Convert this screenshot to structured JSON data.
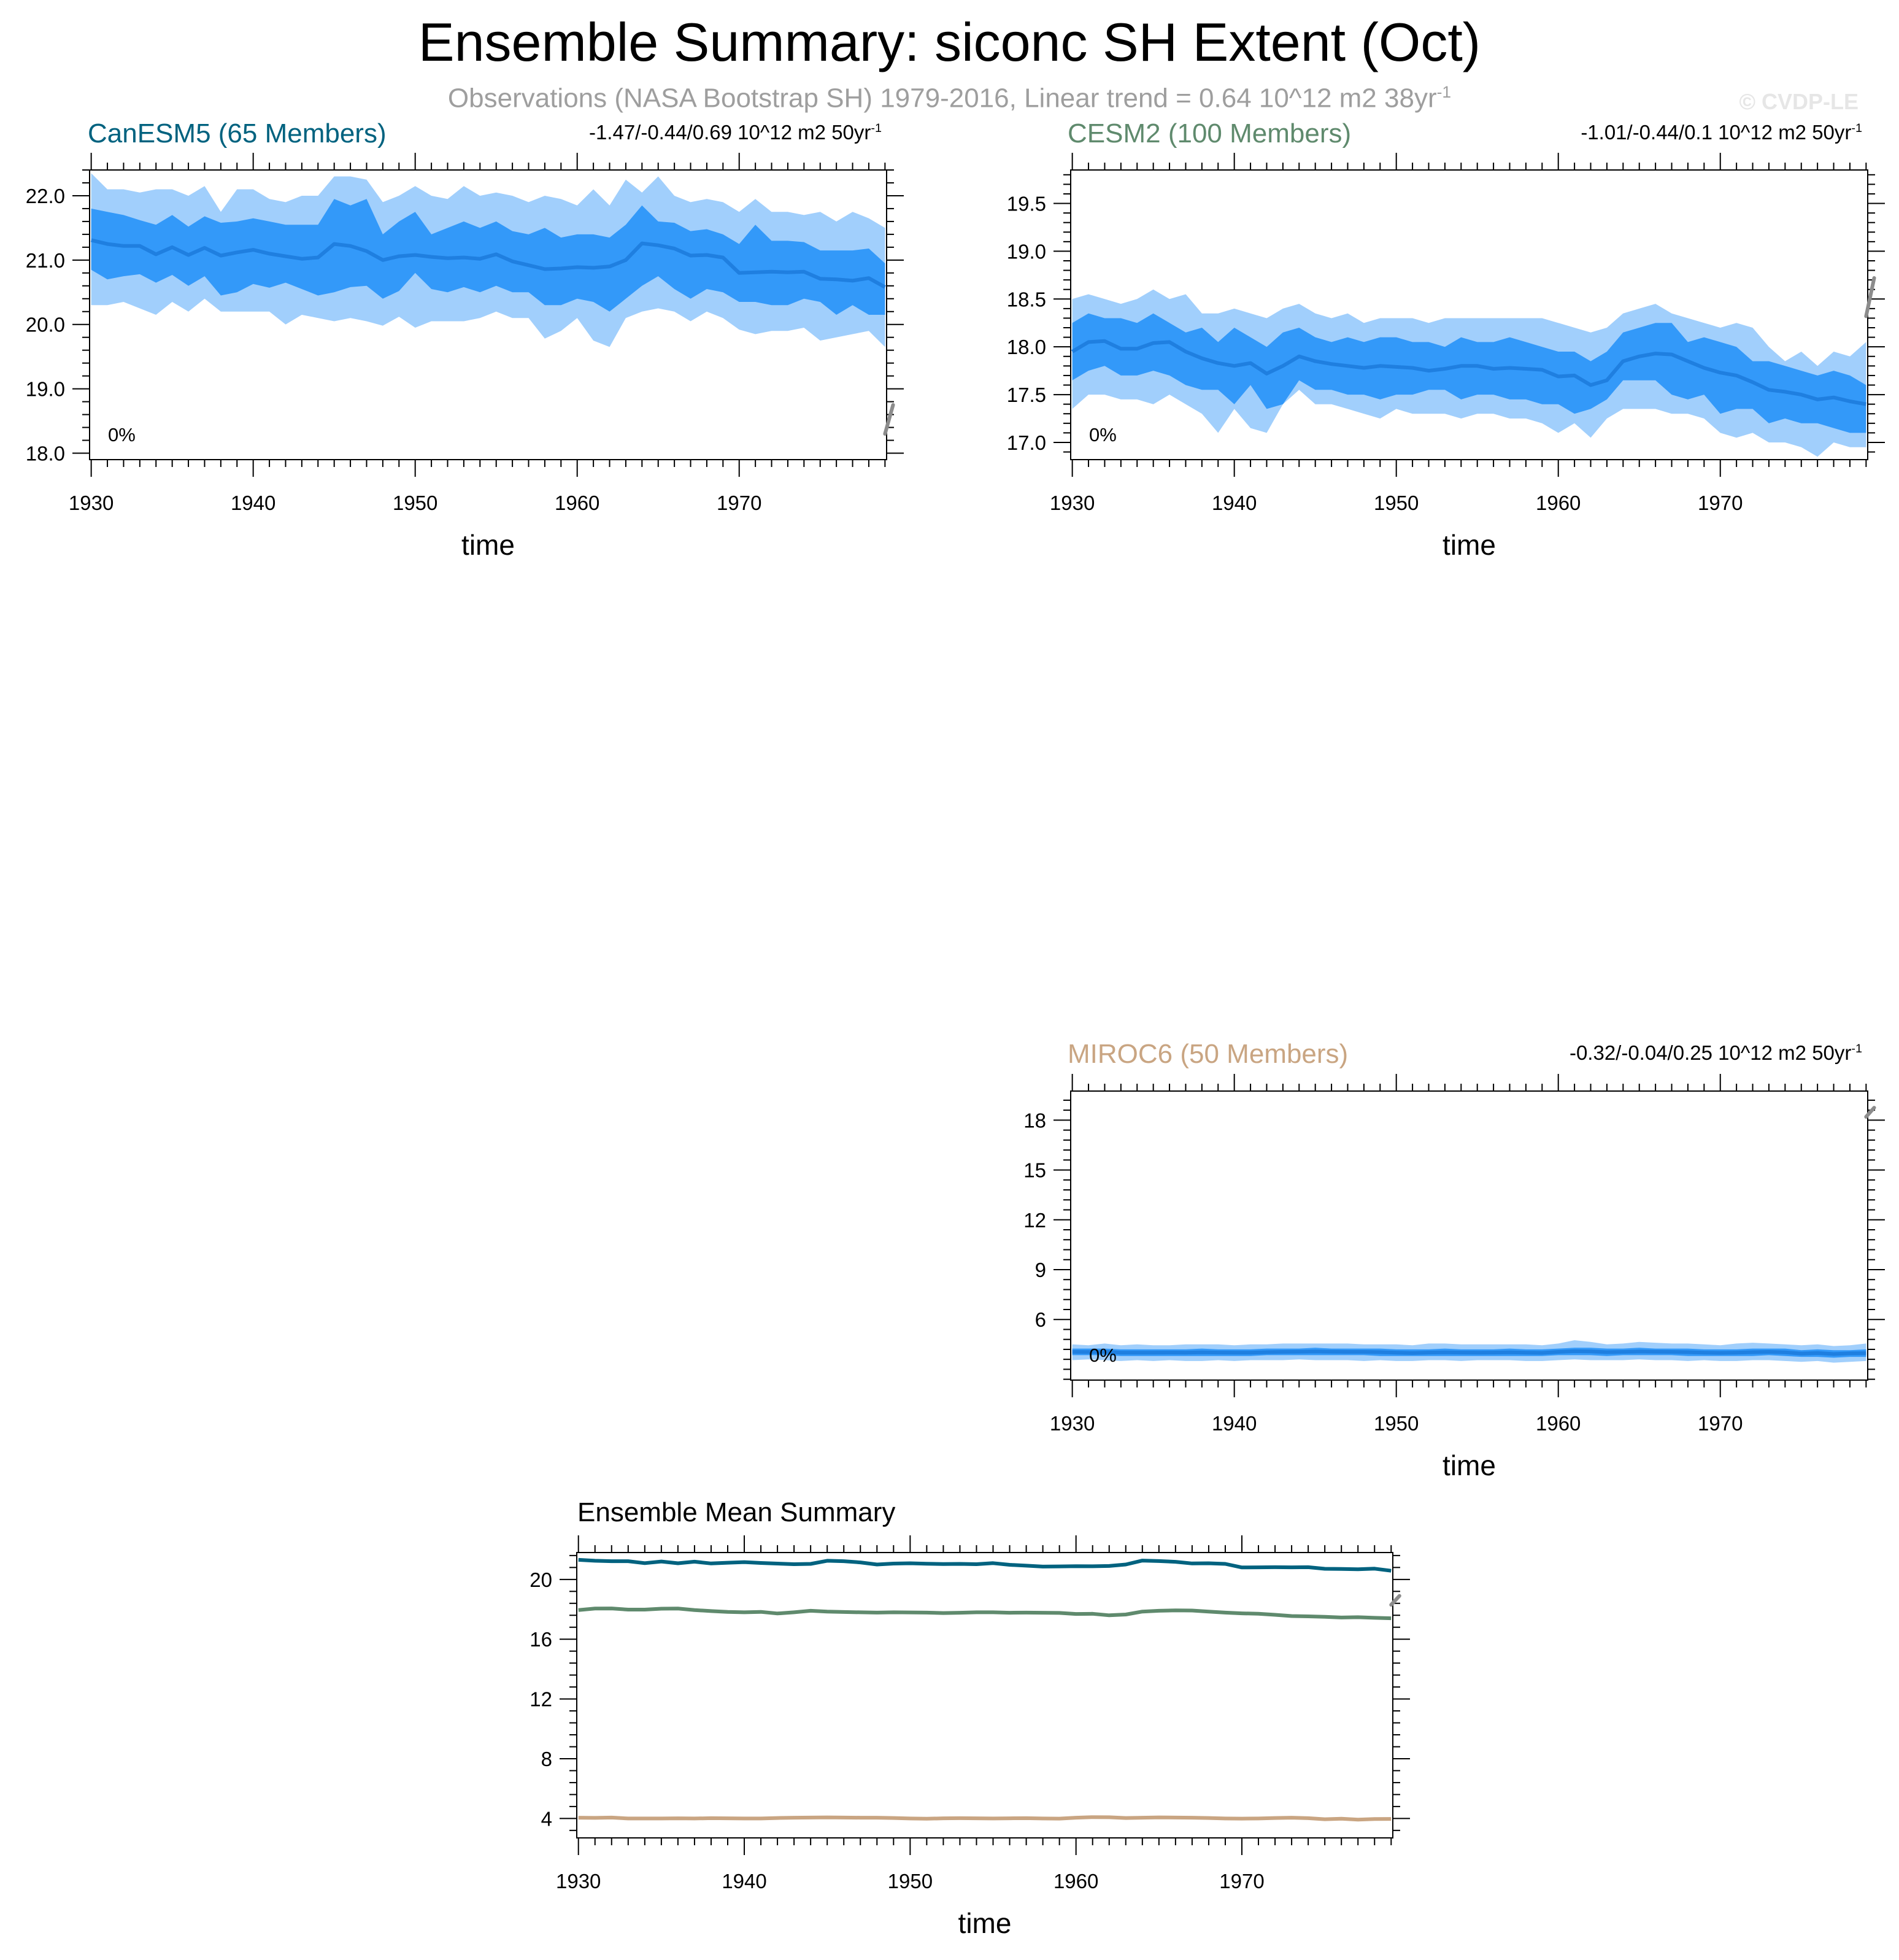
{
  "header": {
    "title": "Ensemble Summary: siconc SH Extent (Oct)",
    "subtitle_text": "Observations (NASA Bootstrap SH) 1979-2016, Linear trend = 0.64 10^12 m2 38yr",
    "subtitle_sup": "-1",
    "copyright": "© CVDP-LE"
  },
  "chart_data": [
    {
      "type": "area",
      "title": "CanESM5 (65 Members)",
      "title_color": "#00627f",
      "trend_text": "-1.47/-0.44/0.69 10^12 m2 50yr",
      "trend_sup": "-1",
      "percent_label": "0%",
      "xlabel": "time",
      "x_ticks": [
        1930,
        1940,
        1950,
        1960,
        1970
      ],
      "y_ticks": [
        "18.0",
        "19.0",
        "20.0",
        "21.0",
        "22.0"
      ],
      "xlim": [
        1929.9,
        1979.1
      ],
      "ylim": [
        17.9,
        22.4
      ],
      "colors": {
        "outer_band": "#a1cffc",
        "inner_band": "#3399f9",
        "mean": "#1f7fe0",
        "obs": "#8c8c8c"
      },
      "x": [
        1930,
        1931,
        1932,
        1933,
        1934,
        1935,
        1936,
        1937,
        1938,
        1939,
        1940,
        1941,
        1942,
        1943,
        1944,
        1945,
        1946,
        1947,
        1948,
        1949,
        1950,
        1951,
        1952,
        1953,
        1954,
        1955,
        1956,
        1957,
        1958,
        1959,
        1960,
        1961,
        1962,
        1963,
        1964,
        1965,
        1966,
        1967,
        1968,
        1969,
        1970,
        1971,
        1972,
        1973,
        1974,
        1975,
        1976,
        1977,
        1978,
        1979
      ],
      "mean": [
        21.31,
        21.25,
        21.22,
        21.22,
        21.09,
        21.2,
        21.08,
        21.19,
        21.07,
        21.12,
        21.16,
        21.1,
        21.06,
        21.02,
        21.04,
        21.25,
        21.22,
        21.14,
        21.0,
        21.06,
        21.08,
        21.05,
        21.03,
        21.04,
        21.02,
        21.09,
        20.98,
        20.92,
        20.86,
        20.87,
        20.89,
        20.88,
        20.9,
        21.0,
        21.26,
        21.23,
        21.18,
        21.07,
        21.08,
        21.04,
        20.8,
        20.81,
        20.82,
        20.81,
        20.82,
        20.71,
        20.7,
        20.68,
        20.72,
        20.58
      ],
      "p25": [
        20.85,
        20.7,
        20.75,
        20.78,
        20.65,
        20.77,
        20.6,
        20.75,
        20.45,
        20.5,
        20.63,
        20.57,
        20.65,
        20.55,
        20.45,
        20.5,
        20.58,
        20.6,
        20.4,
        20.52,
        20.8,
        20.55,
        20.5,
        20.58,
        20.5,
        20.6,
        20.5,
        20.5,
        20.3,
        20.3,
        20.4,
        20.35,
        20.2,
        20.4,
        20.6,
        20.75,
        20.55,
        20.4,
        20.55,
        20.5,
        20.35,
        20.35,
        20.3,
        20.3,
        20.4,
        20.35,
        20.15,
        20.3,
        20.15,
        20.15
      ],
      "p75": [
        21.8,
        21.75,
        21.7,
        21.62,
        21.55,
        21.7,
        21.52,
        21.68,
        21.58,
        21.6,
        21.65,
        21.6,
        21.55,
        21.55,
        21.55,
        21.95,
        21.85,
        21.95,
        21.4,
        21.6,
        21.75,
        21.4,
        21.5,
        21.6,
        21.5,
        21.6,
        21.45,
        21.4,
        21.5,
        21.35,
        21.4,
        21.4,
        21.35,
        21.55,
        21.85,
        21.6,
        21.58,
        21.45,
        21.48,
        21.4,
        21.25,
        21.55,
        21.3,
        21.3,
        21.28,
        21.15,
        21.15,
        21.15,
        21.18,
        20.95
      ],
      "p2": [
        20.3,
        20.3,
        20.35,
        20.25,
        20.15,
        20.35,
        20.2,
        20.4,
        20.2,
        20.2,
        20.2,
        20.2,
        20.0,
        20.15,
        20.1,
        20.05,
        20.1,
        20.05,
        19.98,
        20.12,
        19.95,
        20.05,
        20.05,
        20.05,
        20.1,
        20.2,
        20.1,
        20.1,
        19.78,
        19.9,
        20.1,
        19.75,
        19.65,
        20.1,
        20.2,
        20.25,
        20.2,
        20.05,
        20.2,
        20.1,
        19.92,
        19.85,
        19.9,
        19.9,
        19.95,
        19.75,
        19.8,
        19.85,
        19.9,
        19.65
      ],
      "p98": [
        22.35,
        22.1,
        22.1,
        22.05,
        22.1,
        22.1,
        22.0,
        22.15,
        21.75,
        22.1,
        22.1,
        21.95,
        21.9,
        22.0,
        22.0,
        22.3,
        22.3,
        22.25,
        21.9,
        22.0,
        22.15,
        22.0,
        21.95,
        22.15,
        22.0,
        22.05,
        22.0,
        21.9,
        22.0,
        21.95,
        21.85,
        22.1,
        21.85,
        22.25,
        22.05,
        22.3,
        22.0,
        21.9,
        21.95,
        21.9,
        21.75,
        21.95,
        21.75,
        21.75,
        21.7,
        21.75,
        21.6,
        21.75,
        21.65,
        21.5
      ],
      "obs_trend": {
        "x": [
          1979.0,
          1979.5
        ],
        "y": [
          18.3,
          18.75
        ]
      }
    },
    {
      "type": "area",
      "title": "CESM2 (100 Members)",
      "title_color": "#5f8a6d",
      "trend_text": "-1.01/-0.44/0.1 10^12 m2 50yr",
      "trend_sup": "-1",
      "percent_label": "0%",
      "xlabel": "time",
      "x_ticks": [
        1930,
        1940,
        1950,
        1960,
        1970
      ],
      "y_ticks": [
        "17.0",
        "17.5",
        "18.0",
        "18.5",
        "19.0",
        "19.5"
      ],
      "xlim": [
        1929.9,
        1979.1
      ],
      "ylim": [
        16.82,
        19.85
      ],
      "colors": {
        "outer_band": "#a1cffc",
        "inner_band": "#3399f9",
        "mean": "#1f7fe0",
        "obs": "#8c8c8c"
      },
      "x": [
        1930,
        1931,
        1932,
        1933,
        1934,
        1935,
        1936,
        1937,
        1938,
        1939,
        1940,
        1941,
        1942,
        1943,
        1944,
        1945,
        1946,
        1947,
        1948,
        1949,
        1950,
        1951,
        1952,
        1953,
        1954,
        1955,
        1956,
        1957,
        1958,
        1959,
        1960,
        1961,
        1962,
        1963,
        1964,
        1965,
        1966,
        1967,
        1968,
        1969,
        1970,
        1971,
        1972,
        1973,
        1974,
        1975,
        1976,
        1977,
        1978,
        1979
      ],
      "mean": [
        17.95,
        18.05,
        18.06,
        17.98,
        17.98,
        18.04,
        18.05,
        17.95,
        17.88,
        17.83,
        17.8,
        17.83,
        17.72,
        17.8,
        17.9,
        17.85,
        17.82,
        17.8,
        17.78,
        17.8,
        17.79,
        17.78,
        17.75,
        17.77,
        17.8,
        17.8,
        17.77,
        17.78,
        17.77,
        17.76,
        17.69,
        17.7,
        17.6,
        17.65,
        17.85,
        17.9,
        17.93,
        17.92,
        17.85,
        17.78,
        17.73,
        17.7,
        17.63,
        17.55,
        17.53,
        17.5,
        17.45,
        17.47,
        17.43,
        17.4
      ],
      "p25": [
        17.65,
        17.75,
        17.8,
        17.7,
        17.7,
        17.75,
        17.7,
        17.6,
        17.55,
        17.55,
        17.4,
        17.6,
        17.35,
        17.4,
        17.65,
        17.55,
        17.55,
        17.5,
        17.5,
        17.45,
        17.5,
        17.5,
        17.55,
        17.55,
        17.45,
        17.5,
        17.5,
        17.45,
        17.45,
        17.4,
        17.4,
        17.3,
        17.35,
        17.45,
        17.65,
        17.65,
        17.65,
        17.5,
        17.45,
        17.5,
        17.3,
        17.35,
        17.35,
        17.2,
        17.25,
        17.2,
        17.2,
        17.15,
        17.1,
        17.1
      ],
      "p75": [
        18.25,
        18.35,
        18.3,
        18.3,
        18.25,
        18.35,
        18.25,
        18.15,
        18.2,
        18.05,
        18.2,
        18.1,
        18.0,
        18.15,
        18.2,
        18.1,
        18.05,
        18.1,
        18.05,
        18.1,
        18.1,
        18.05,
        18.05,
        18.0,
        18.1,
        18.05,
        18.05,
        18.1,
        18.05,
        18.0,
        17.95,
        17.95,
        17.85,
        17.95,
        18.15,
        18.2,
        18.25,
        18.25,
        18.05,
        18.1,
        18.05,
        18.0,
        17.85,
        17.85,
        17.8,
        17.75,
        17.7,
        17.75,
        17.7,
        17.6
      ],
      "p2": [
        17.35,
        17.5,
        17.5,
        17.45,
        17.45,
        17.4,
        17.5,
        17.4,
        17.3,
        17.1,
        17.35,
        17.15,
        17.1,
        17.4,
        17.55,
        17.4,
        17.4,
        17.35,
        17.3,
        17.25,
        17.35,
        17.3,
        17.3,
        17.3,
        17.25,
        17.3,
        17.3,
        17.25,
        17.25,
        17.2,
        17.1,
        17.2,
        17.05,
        17.25,
        17.35,
        17.35,
        17.35,
        17.3,
        17.3,
        17.25,
        17.1,
        17.05,
        17.1,
        17.0,
        17.0,
        16.95,
        16.85,
        17.0,
        16.95,
        16.95
      ],
      "p98": [
        18.5,
        18.55,
        18.5,
        18.45,
        18.5,
        18.6,
        18.5,
        18.55,
        18.35,
        18.35,
        18.4,
        18.35,
        18.3,
        18.4,
        18.45,
        18.35,
        18.3,
        18.35,
        18.25,
        18.3,
        18.3,
        18.3,
        18.25,
        18.3,
        18.3,
        18.3,
        18.3,
        18.3,
        18.3,
        18.3,
        18.25,
        18.2,
        18.15,
        18.2,
        18.35,
        18.4,
        18.45,
        18.35,
        18.3,
        18.25,
        18.2,
        18.25,
        18.2,
        18.0,
        17.85,
        17.95,
        17.8,
        17.95,
        17.9,
        18.05
      ],
      "obs_trend": {
        "x": [
          1979.0,
          1979.5
        ],
        "y": [
          18.32,
          18.72
        ]
      }
    },
    {
      "type": "area",
      "title": "MIROC6 (50 Members)",
      "title_color": "#c9a582",
      "trend_text": "-0.32/-0.04/0.25 10^12 m2 50yr",
      "trend_sup": "-1",
      "percent_label": "0%",
      "xlabel": "time",
      "x_ticks": [
        1930,
        1940,
        1950,
        1960,
        1970
      ],
      "y_ticks": [
        "6",
        "9",
        "12",
        "15",
        "18"
      ],
      "xlim": [
        1929.9,
        1979.1
      ],
      "ylim": [
        2.35,
        19.75
      ],
      "colors": {
        "outer_band": "#a1cffc",
        "inner_band": "#3399f9",
        "mean": "#1f7fe0",
        "obs": "#8c8c8c"
      },
      "x": [
        1930,
        1931,
        1932,
        1933,
        1934,
        1935,
        1936,
        1937,
        1938,
        1939,
        1940,
        1941,
        1942,
        1943,
        1944,
        1945,
        1946,
        1947,
        1948,
        1949,
        1950,
        1951,
        1952,
        1953,
        1954,
        1955,
        1956,
        1957,
        1958,
        1959,
        1960,
        1961,
        1962,
        1963,
        1964,
        1965,
        1966,
        1967,
        1968,
        1969,
        1970,
        1971,
        1972,
        1973,
        1974,
        1975,
        1976,
        1977,
        1978,
        1979
      ],
      "mean": [
        4.05,
        4.04,
        4.06,
        4.0,
        4.0,
        4.0,
        4.01,
        4.0,
        4.02,
        4.01,
        4.0,
        4.0,
        4.03,
        4.05,
        4.06,
        4.07,
        4.06,
        4.05,
        4.05,
        4.03,
        4.0,
        3.98,
        4.01,
        4.02,
        4.01,
        4.0,
        4.01,
        4.02,
        4.0,
        3.99,
        4.05,
        4.09,
        4.08,
        4.03,
        4.05,
        4.07,
        4.06,
        4.05,
        4.03,
        4.0,
        3.99,
        4.0,
        4.03,
        4.05,
        4.02,
        3.95,
        3.98,
        3.92,
        3.96,
        3.97
      ],
      "p25": [
        3.85,
        3.85,
        3.85,
        3.8,
        3.8,
        3.8,
        3.8,
        3.8,
        3.8,
        3.8,
        3.8,
        3.8,
        3.85,
        3.85,
        3.85,
        3.85,
        3.85,
        3.85,
        3.85,
        3.8,
        3.8,
        3.8,
        3.8,
        3.8,
        3.8,
        3.8,
        3.8,
        3.8,
        3.8,
        3.8,
        3.85,
        3.85,
        3.85,
        3.8,
        3.85,
        3.85,
        3.85,
        3.85,
        3.8,
        3.8,
        3.8,
        3.8,
        3.8,
        3.85,
        3.8,
        3.75,
        3.75,
        3.7,
        3.75,
        3.75
      ],
      "p75": [
        4.25,
        4.25,
        4.25,
        4.2,
        4.2,
        4.2,
        4.2,
        4.2,
        4.25,
        4.2,
        4.2,
        4.2,
        4.25,
        4.25,
        4.25,
        4.3,
        4.25,
        4.25,
        4.25,
        4.25,
        4.2,
        4.2,
        4.2,
        4.25,
        4.2,
        4.2,
        4.2,
        4.25,
        4.2,
        4.2,
        4.25,
        4.3,
        4.3,
        4.25,
        4.25,
        4.3,
        4.25,
        4.25,
        4.25,
        4.2,
        4.2,
        4.2,
        4.25,
        4.25,
        4.25,
        4.15,
        4.2,
        4.15,
        4.15,
        4.2
      ],
      "p2": [
        3.55,
        3.6,
        3.55,
        3.5,
        3.55,
        3.5,
        3.55,
        3.5,
        3.5,
        3.55,
        3.5,
        3.55,
        3.55,
        3.55,
        3.6,
        3.55,
        3.55,
        3.55,
        3.5,
        3.55,
        3.5,
        3.5,
        3.55,
        3.55,
        3.5,
        3.55,
        3.55,
        3.55,
        3.5,
        3.5,
        3.55,
        3.6,
        3.55,
        3.55,
        3.55,
        3.6,
        3.55,
        3.55,
        3.5,
        3.55,
        3.5,
        3.5,
        3.55,
        3.55,
        3.5,
        3.45,
        3.5,
        3.4,
        3.45,
        3.5
      ],
      "p98": [
        4.5,
        4.45,
        4.55,
        4.45,
        4.5,
        4.45,
        4.45,
        4.5,
        4.5,
        4.5,
        4.45,
        4.5,
        4.5,
        4.55,
        4.55,
        4.55,
        4.55,
        4.55,
        4.5,
        4.5,
        4.5,
        4.45,
        4.55,
        4.55,
        4.5,
        4.5,
        4.5,
        4.5,
        4.5,
        4.45,
        4.55,
        4.75,
        4.65,
        4.5,
        4.55,
        4.65,
        4.6,
        4.55,
        4.55,
        4.5,
        4.45,
        4.55,
        4.6,
        4.55,
        4.5,
        4.45,
        4.5,
        4.4,
        4.45,
        4.55
      ],
      "obs_trend": {
        "x": [
          1979.0,
          1979.5
        ],
        "y": [
          18.2,
          18.75
        ]
      }
    },
    {
      "type": "line",
      "title": "Ensemble Mean Summary",
      "xlabel": "time",
      "x_ticks": [
        1930,
        1940,
        1950,
        1960,
        1970
      ],
      "y_ticks": [
        "4",
        "8",
        "12",
        "16",
        "20"
      ],
      "xlim": [
        1929.9,
        1979.1
      ],
      "ylim": [
        2.7,
        21.8
      ],
      "x": [
        1930,
        1931,
        1932,
        1933,
        1934,
        1935,
        1936,
        1937,
        1938,
        1939,
        1940,
        1941,
        1942,
        1943,
        1944,
        1945,
        1946,
        1947,
        1948,
        1949,
        1950,
        1951,
        1952,
        1953,
        1954,
        1955,
        1956,
        1957,
        1958,
        1959,
        1960,
        1961,
        1962,
        1963,
        1964,
        1965,
        1966,
        1967,
        1968,
        1969,
        1970,
        1971,
        1972,
        1973,
        1974,
        1975,
        1976,
        1977,
        1978,
        1979
      ],
      "series": [
        {
          "color": "#00627f",
          "ref": 0
        },
        {
          "color": "#5f8a6d",
          "ref": 1
        },
        {
          "color": "#c9a582",
          "ref": 2
        }
      ],
      "obs_trend": {
        "x": [
          1979.0,
          1979.5
        ],
        "y": [
          18.3,
          18.9
        ]
      }
    }
  ]
}
